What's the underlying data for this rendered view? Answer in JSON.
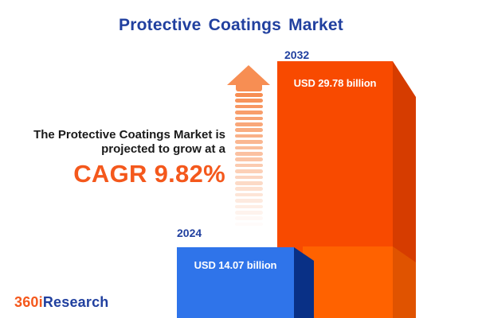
{
  "title": "Protective Coatings Market",
  "annotation": {
    "line1": "The Protective Coatings Market is",
    "line2": "projected to grow at a",
    "cagr": "CAGR 9.82%"
  },
  "bars": [
    {
      "year": "2024",
      "value": 14.07,
      "value_label": "USD 14.07 billion",
      "face_color": "#2F74EA",
      "side_color": "#093086"
    },
    {
      "year": "2032",
      "value": 29.78,
      "value_label": "USD 29.78 billion",
      "face_color": "#F84A00",
      "side_color": "#D63C00",
      "front_overlay_color": "#FF6200",
      "front_overlay_side_color": "#E05300"
    }
  ],
  "logo": {
    "prefix": "360i",
    "suffix": "Research",
    "prefix_color": "#F4581C",
    "suffix_color": "#21409F"
  },
  "chart_data": {
    "type": "bar",
    "categories": [
      "2024",
      "2032"
    ],
    "values": [
      14.07,
      29.78
    ],
    "value_labels": [
      "USD 14.07 billion",
      "USD 29.78 billion"
    ],
    "unit": "USD billion",
    "title": "Protective Coatings Market",
    "annotations": [
      "The Protective Coatings Market is projected to grow at a CAGR 9.82%"
    ],
    "cagr_percent": 9.82,
    "bar_colors": [
      "#2F74EA",
      "#F84A00"
    ],
    "legend": "none",
    "axes": "none",
    "grid": false,
    "style": "3d-infographic with fading growth arrow between bars"
  },
  "colors": {
    "background": "#FFFFFF",
    "brand_blue": "#21409F",
    "accent_orange": "#F4581C",
    "arrow_orange": "#F78E53",
    "text_dark": "#1A1A1A"
  }
}
